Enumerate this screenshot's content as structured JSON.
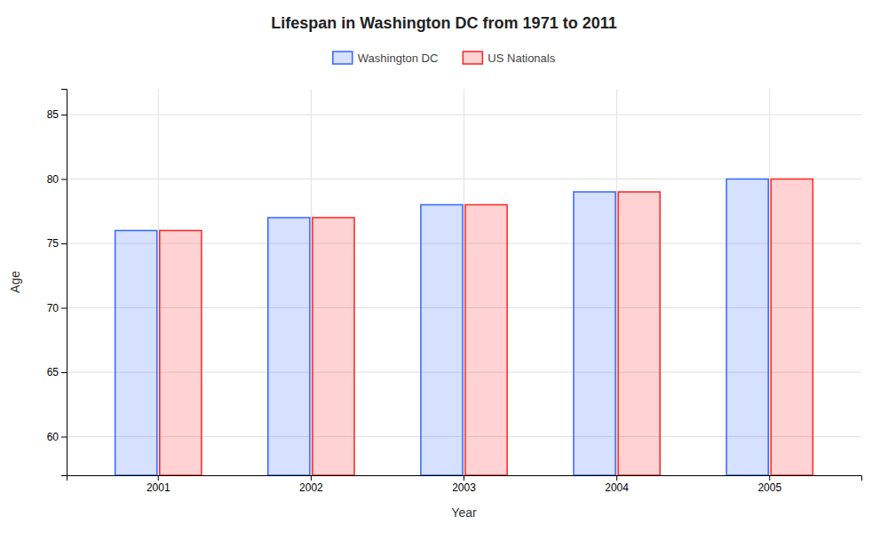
{
  "chart_data": {
    "type": "bar",
    "title": "Lifespan in Washington DC from 1971 to 2011",
    "xlabel": "Year",
    "ylabel": "Age",
    "categories": [
      "2001",
      "2002",
      "2003",
      "2004",
      "2005"
    ],
    "series": [
      {
        "name": "Washington DC",
        "color": "#3366ff",
        "values": [
          76,
          77,
          78,
          79,
          80
        ]
      },
      {
        "name": "US Nationals",
        "color": "#ff2222",
        "values": [
          76,
          77,
          78,
          79,
          80
        ]
      }
    ],
    "ylim": [
      57,
      87
    ],
    "yticks": [
      60,
      65,
      70,
      75,
      80,
      85
    ],
    "grid": true,
    "legend": "top"
  }
}
